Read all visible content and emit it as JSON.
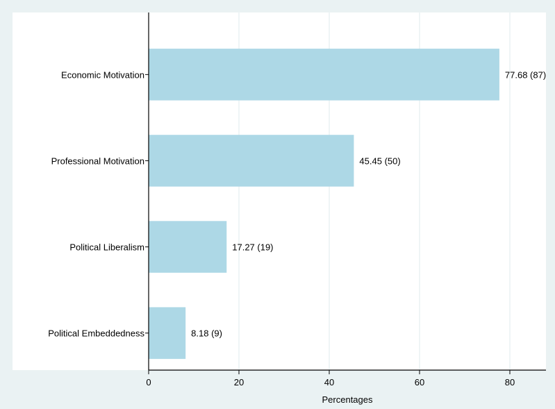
{
  "chart_data": {
    "type": "bar",
    "orientation": "horizontal",
    "title": "",
    "xlabel": "Percentages",
    "ylabel": "",
    "xlim": [
      0,
      88
    ],
    "xticks": [
      0,
      20,
      40,
      60,
      80
    ],
    "grid": true,
    "categories": [
      "Economic Motivation",
      "Professional Motivation",
      "Political Liberalism",
      "Political Embeddedness"
    ],
    "values": [
      77.68,
      45.45,
      17.27,
      8.18
    ],
    "counts": [
      87,
      50,
      19,
      9
    ],
    "data_labels": [
      "77.68 (87)",
      "45.45 (50)",
      "17.27 (19)",
      "8.18 (9)"
    ],
    "colors": {
      "bar": "#add8e6",
      "plot_background": "#ffffff",
      "page_background": "#eaf2f3",
      "grid": "#eaf2f3",
      "axis": "#000000"
    }
  }
}
